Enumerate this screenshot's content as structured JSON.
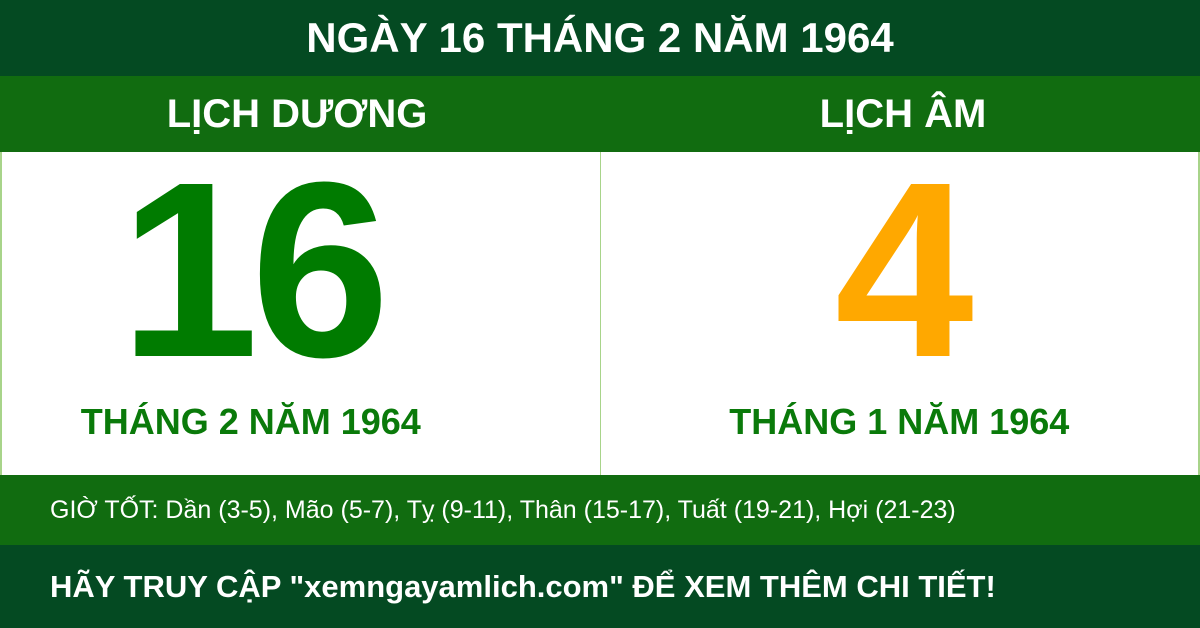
{
  "title": "NGÀY 16 THÁNG 2 NĂM 1964",
  "solar": {
    "header": "LỊCH DƯƠNG",
    "day": "16",
    "month_year": "THÁNG 2 NĂM 1964"
  },
  "lunar": {
    "header": "LỊCH ÂM",
    "day": "4",
    "month_year": "THÁNG 1 NĂM 1964"
  },
  "good_hours": "GIỜ TỐT: Dần (3-5), Mão (5-7), Tỵ (9-11), Thân (15-17), Tuất (19-21), Hợi (21-23)",
  "footer": "HÃY TRUY CẬP \"xemngayamlich.com\" ĐỂ XEM THÊM CHI TIẾT!",
  "colors": {
    "dark_green": "#044a22",
    "green": "#116c10",
    "solar_day": "#007b00",
    "lunar_day": "#ffa800"
  }
}
